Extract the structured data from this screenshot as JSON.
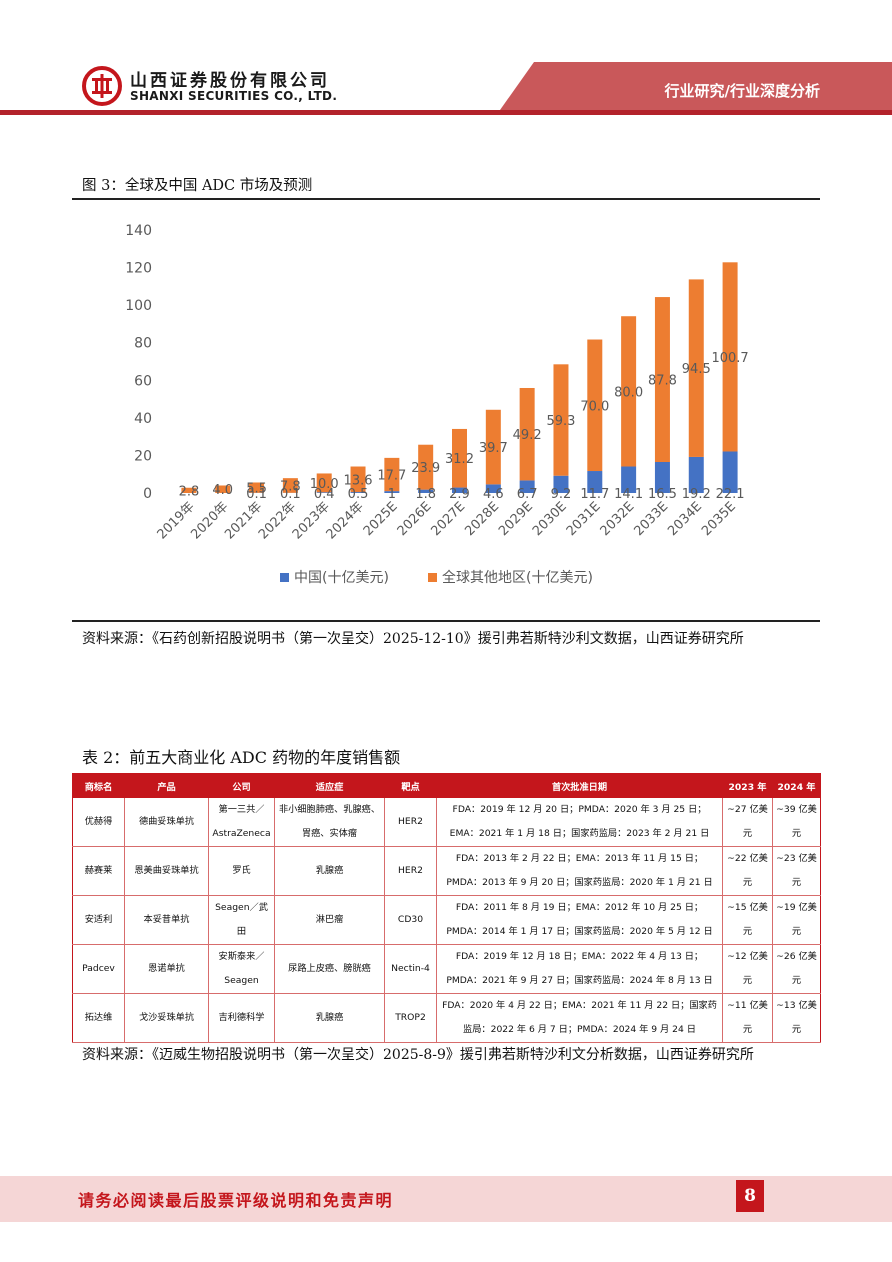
{
  "header": {
    "company_cn": "山西证券股份有限公司",
    "company_en": "SHANXI SECURITIES CO., LTD.",
    "report_type": "行业研究/行业深度分析",
    "brand_color": "#c4161c"
  },
  "figure": {
    "title": "图 3：全球及中国 ADC 市场及预测",
    "source": "资料来源：《石药创新招股说明书（第一次呈交）2025-12-10》援引弗若斯特沙利文数据，山西证券研究所"
  },
  "chart_data": {
    "type": "bar",
    "stacked": true,
    "categories": [
      "2019年",
      "2020年",
      "2021年",
      "2022年",
      "2023年",
      "2024年",
      "2025E",
      "2026E",
      "2027E",
      "2028E",
      "2029E",
      "2030E",
      "2031E",
      "2032E",
      "2033E",
      "2034E",
      "2035E"
    ],
    "series": [
      {
        "name": "中国(十亿美元)",
        "color": "#4472c4",
        "values": [
          null,
          null,
          0.1,
          0.1,
          0.4,
          0.5,
          1,
          1.8,
          2.9,
          4.6,
          6.7,
          9.2,
          11.7,
          14.1,
          16.5,
          19.2,
          22.1
        ]
      },
      {
        "name": "全球其他地区(十亿美元)",
        "color": "#ed7d31",
        "values": [
          2.8,
          4.0,
          5.5,
          7.8,
          10.0,
          13.6,
          17.7,
          23.9,
          31.2,
          39.7,
          49.2,
          59.3,
          70.0,
          80.0,
          87.8,
          94.5,
          100.7
        ]
      }
    ],
    "ylim": [
      0,
      140
    ],
    "yticks": [
      0,
      20,
      40,
      60,
      80,
      100,
      120,
      140
    ],
    "grid": false,
    "legend": "bottom"
  },
  "table": {
    "title": "表 2：前五大商业化 ADC 药物的年度销售额",
    "headers": [
      "商标名",
      "产品",
      "公司",
      "适应症",
      "靶点",
      "首次批准日期",
      "2023 年",
      "2024 年"
    ],
    "rows": [
      [
        "优赫得",
        "德曲妥珠单抗",
        "第一三共／AstraZeneca",
        "非小细胞肺癌、乳腺癌、胃癌、实体瘤",
        "HER2",
        "FDA：2019 年 12 月 20 日；PMDA：2020 年 3 月 25 日；EMA：2021 年 1 月 18 日；国家药监局：2023 年 2 月 21 日",
        "~27 亿美元",
        "~39 亿美元"
      ],
      [
        "赫赛莱",
        "恩美曲妥珠单抗",
        "罗氏",
        "乳腺癌",
        "HER2",
        "FDA：2013 年 2 月 22 日；EMA：2013 年 11 月 15 日；PMDA：2013 年 9 月 20 日；国家药监局：2020 年 1 月 21 日",
        "~22 亿美元",
        "~23 亿美元"
      ],
      [
        "安适利",
        "本妥昔单抗",
        "Seagen／武田",
        "淋巴瘤",
        "CD30",
        "FDA：2011 年 8 月 19 日；EMA：2012 年 10 月 25 日；PMDA：2014 年 1 月 17 日；国家药监局：2020 年 5 月 12 日",
        "~15 亿美元",
        "~19 亿美元"
      ],
      [
        "Padcev",
        "恩诺单抗",
        "安斯泰来／Seagen",
        "尿路上皮癌、膀胱癌",
        "Nectin-4",
        "FDA：2019 年 12 月 18 日；EMA：2022 年 4 月 13 日；PMDA：2021 年 9 月 27 日；国家药监局：2024 年 8 月 13 日",
        "~12 亿美元",
        "~26 亿美元"
      ],
      [
        "拓达维",
        "戈沙妥珠单抗",
        "吉利德科学",
        "乳腺癌",
        "TROP2",
        "FDA：2020 年 4 月 22 日；EMA：2021 年 11 月 22 日；国家药监局：2022 年 6 月 7 日；PMDA：2024 年 9 月 24 日",
        "~11 亿美元",
        "~13 亿美元"
      ]
    ],
    "source": "资料来源：《迈威生物招股说明书（第一次呈交）2025-8-9》援引弗若斯特沙利文分析数据，山西证券研究所"
  },
  "footer": {
    "disclaimer": "请务必阅读最后股票评级说明和免责声明",
    "page_number": "8"
  }
}
